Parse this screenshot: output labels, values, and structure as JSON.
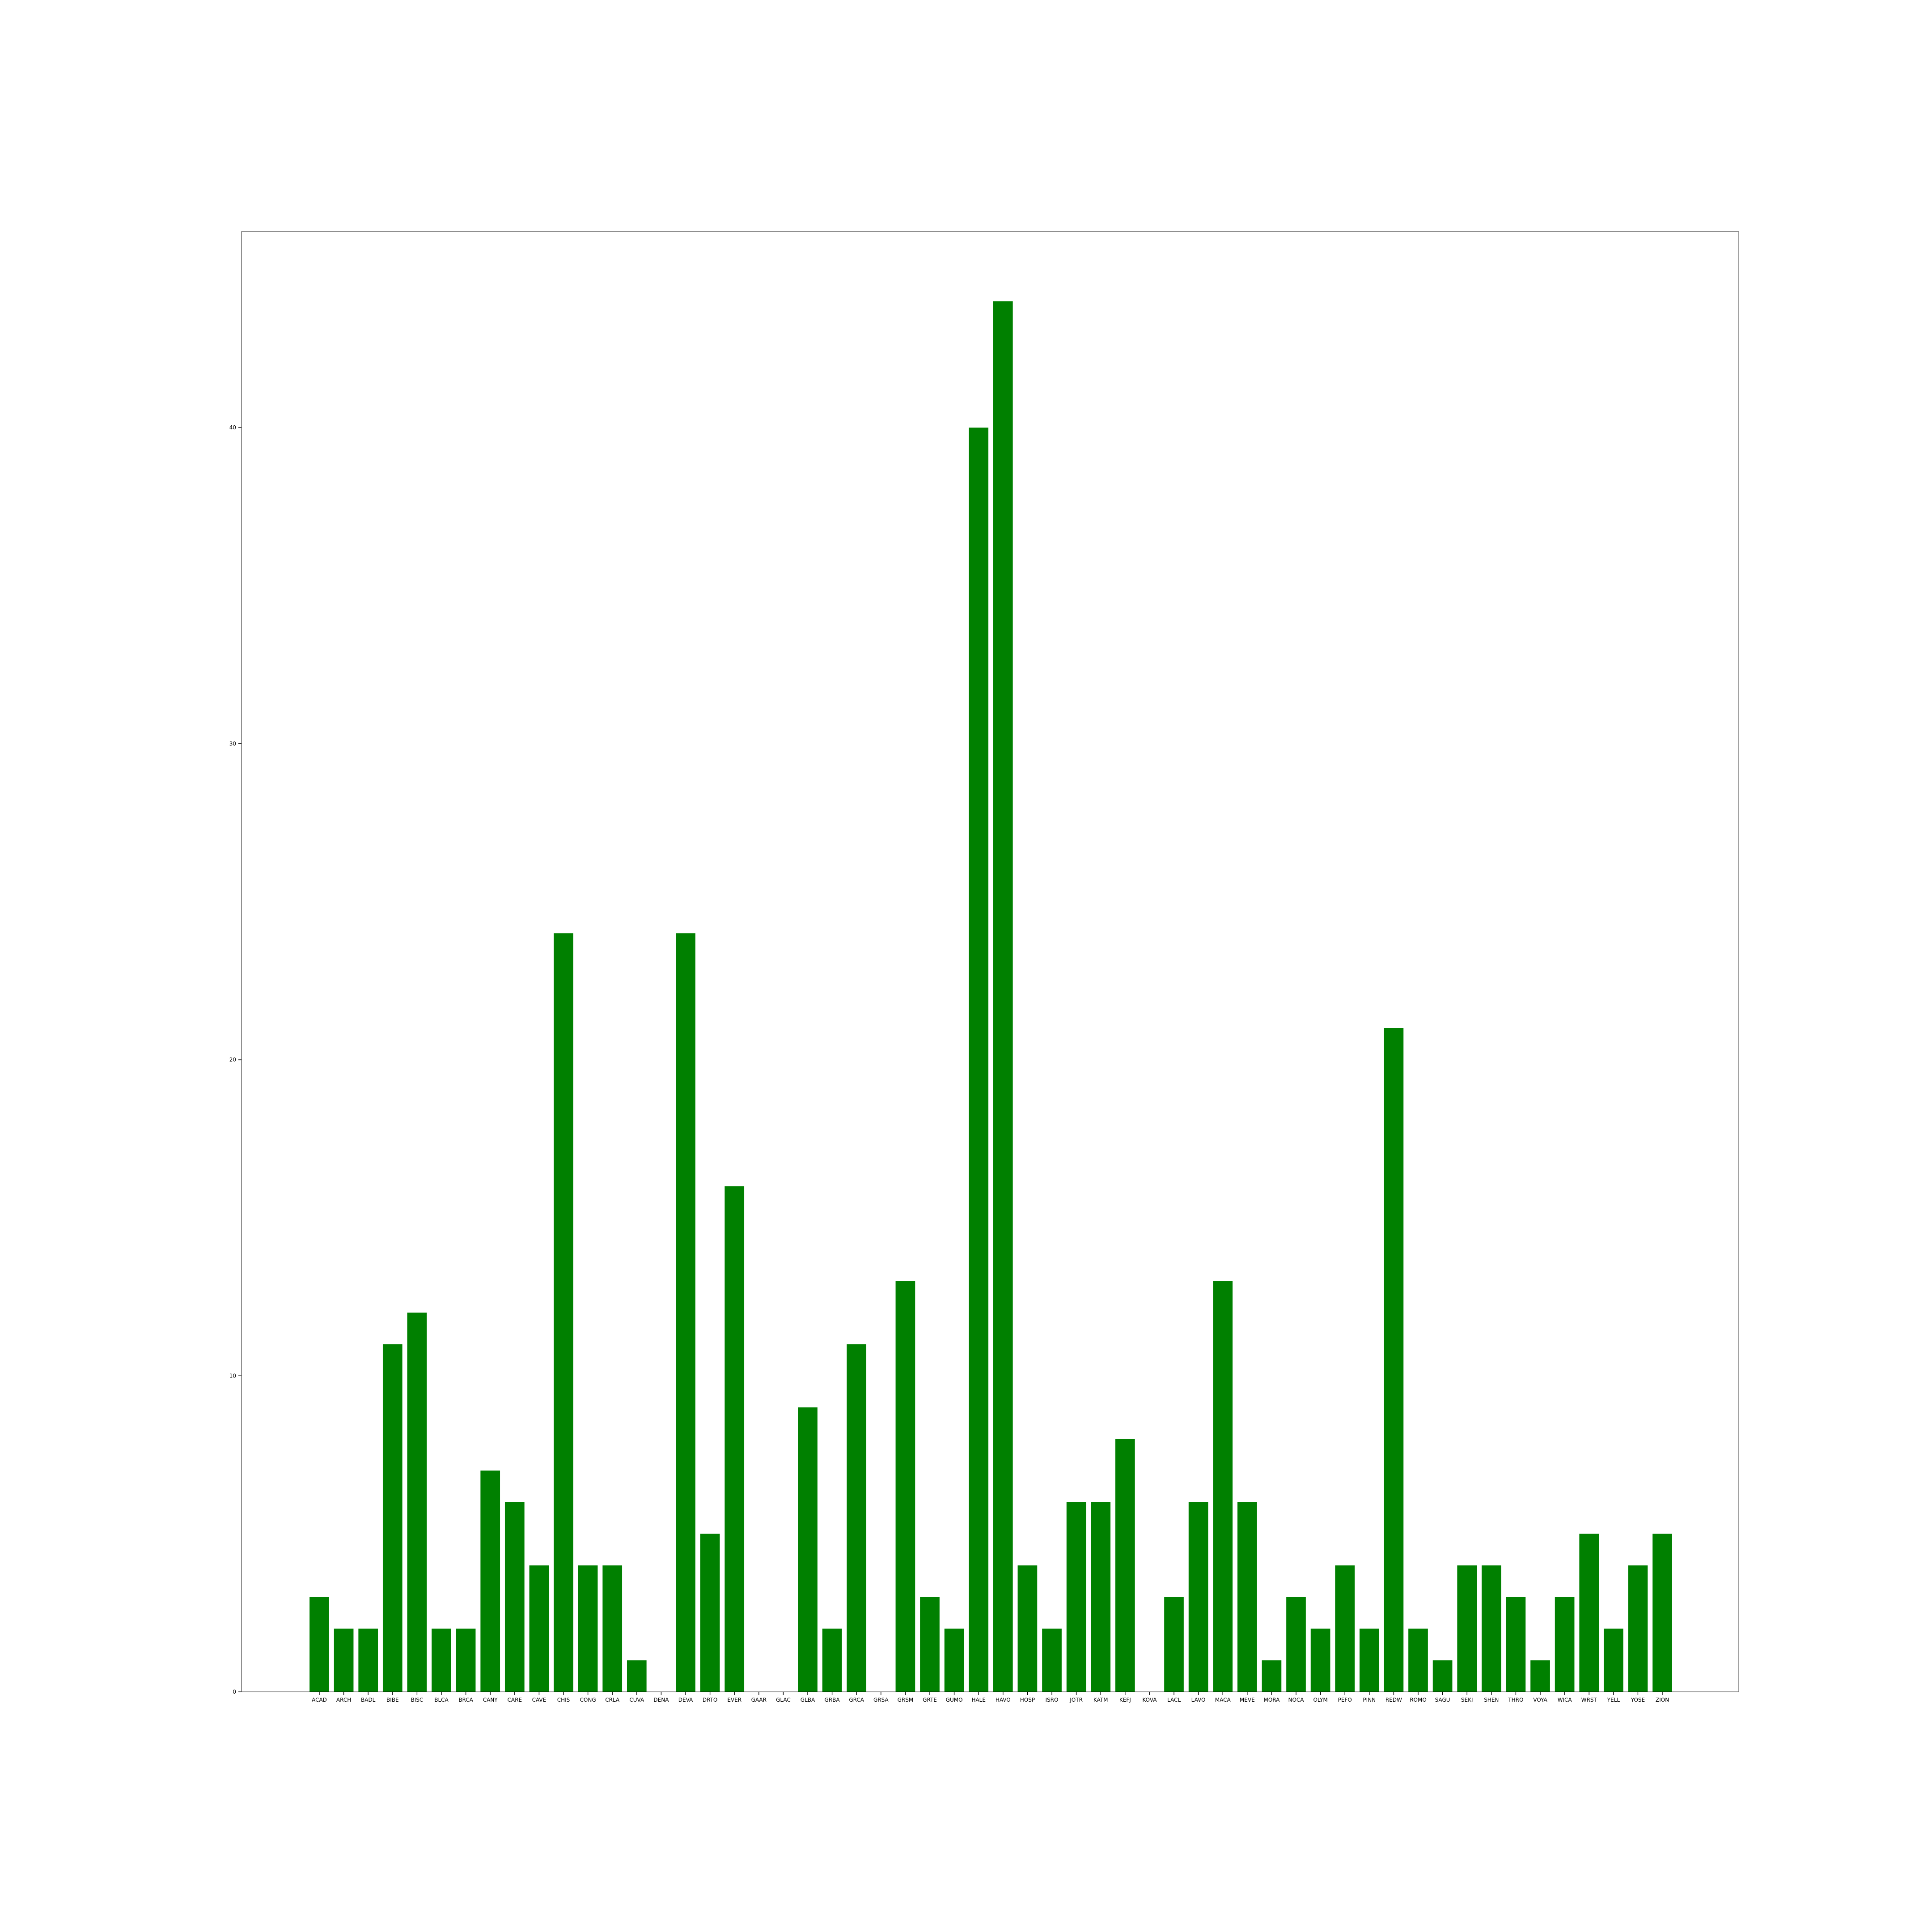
{
  "chart_data": {
    "type": "bar",
    "title": "",
    "xlabel": "",
    "ylabel": "",
    "ylim": [
      0,
      46.2
    ],
    "yticks": [
      0,
      10,
      20,
      30,
      40
    ],
    "grid": false,
    "legend": "none",
    "bar_color": "#008000",
    "categories": [
      "ACAD",
      "ARCH",
      "BADL",
      "BIBE",
      "BISC",
      "BLCA",
      "BRCA",
      "CANY",
      "CARE",
      "CAVE",
      "CHIS",
      "CONG",
      "CRLA",
      "CUVA",
      "DENA",
      "DEVA",
      "DRTO",
      "EVER",
      "GAAR",
      "GLAC",
      "GLBA",
      "GRBA",
      "GRCA",
      "GRSA",
      "GRSM",
      "GRTE",
      "GUMO",
      "HALE",
      "HAVO",
      "HOSP",
      "ISRO",
      "JOTR",
      "KATM",
      "KEFJ",
      "KOVA",
      "LACL",
      "LAVO",
      "MACA",
      "MEVE",
      "MORA",
      "NOCA",
      "OLYM",
      "PEFO",
      "PINN",
      "REDW",
      "ROMO",
      "SAGU",
      "SEKI",
      "SHEN",
      "THRO",
      "VOYA",
      "WICA",
      "WRST",
      "YELL",
      "YOSE",
      "ZION"
    ],
    "values": [
      3,
      2,
      2,
      11,
      12,
      2,
      2,
      7,
      6,
      4,
      24,
      4,
      4,
      1,
      0,
      24,
      5,
      16,
      0,
      0,
      9,
      2,
      11,
      0,
      13,
      3,
      2,
      40,
      44,
      4,
      2,
      6,
      6,
      8,
      0,
      3,
      6,
      13,
      6,
      1,
      3,
      2,
      4,
      2,
      21,
      2,
      1,
      4,
      4,
      3,
      1,
      3,
      5,
      2,
      4,
      5
    ]
  }
}
